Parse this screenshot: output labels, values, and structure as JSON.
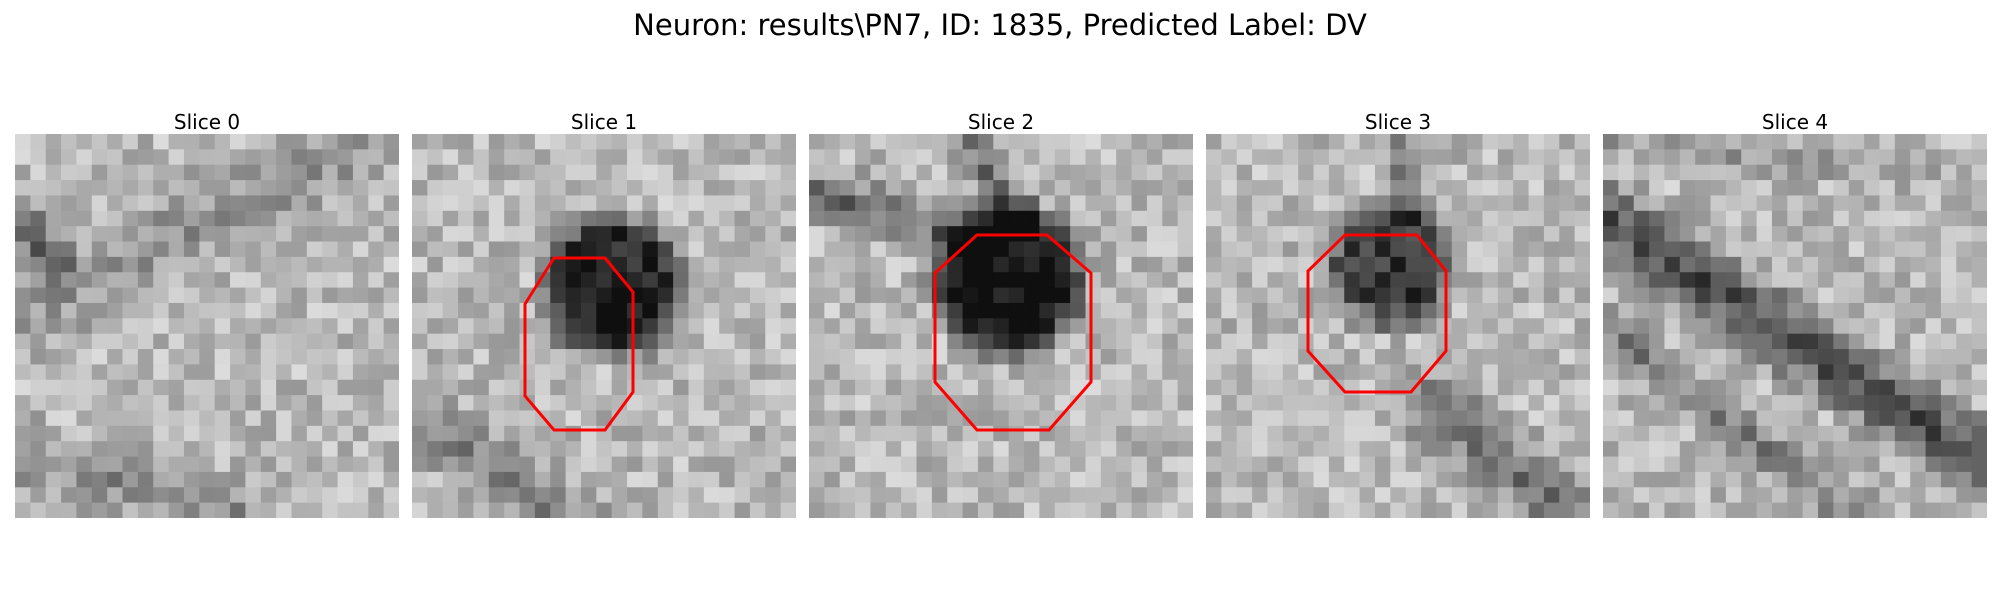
{
  "figure": {
    "title": "Neuron: results\\PN7, ID: 1835, Predicted Label: DV"
  },
  "panels": [
    {
      "title": "Slice 0",
      "has_contour": false
    },
    {
      "title": "Slice 1",
      "has_contour": true
    },
    {
      "title": "Slice 2",
      "has_contour": true
    },
    {
      "title": "Slice 3",
      "has_contour": true
    },
    {
      "title": "Slice 4",
      "has_contour": false
    }
  ],
  "colors": {
    "contour": "#ff0000",
    "background": "#ffffff"
  },
  "image_style": "grayscale noisy microscopy patch",
  "contour_shape": "octagon"
}
